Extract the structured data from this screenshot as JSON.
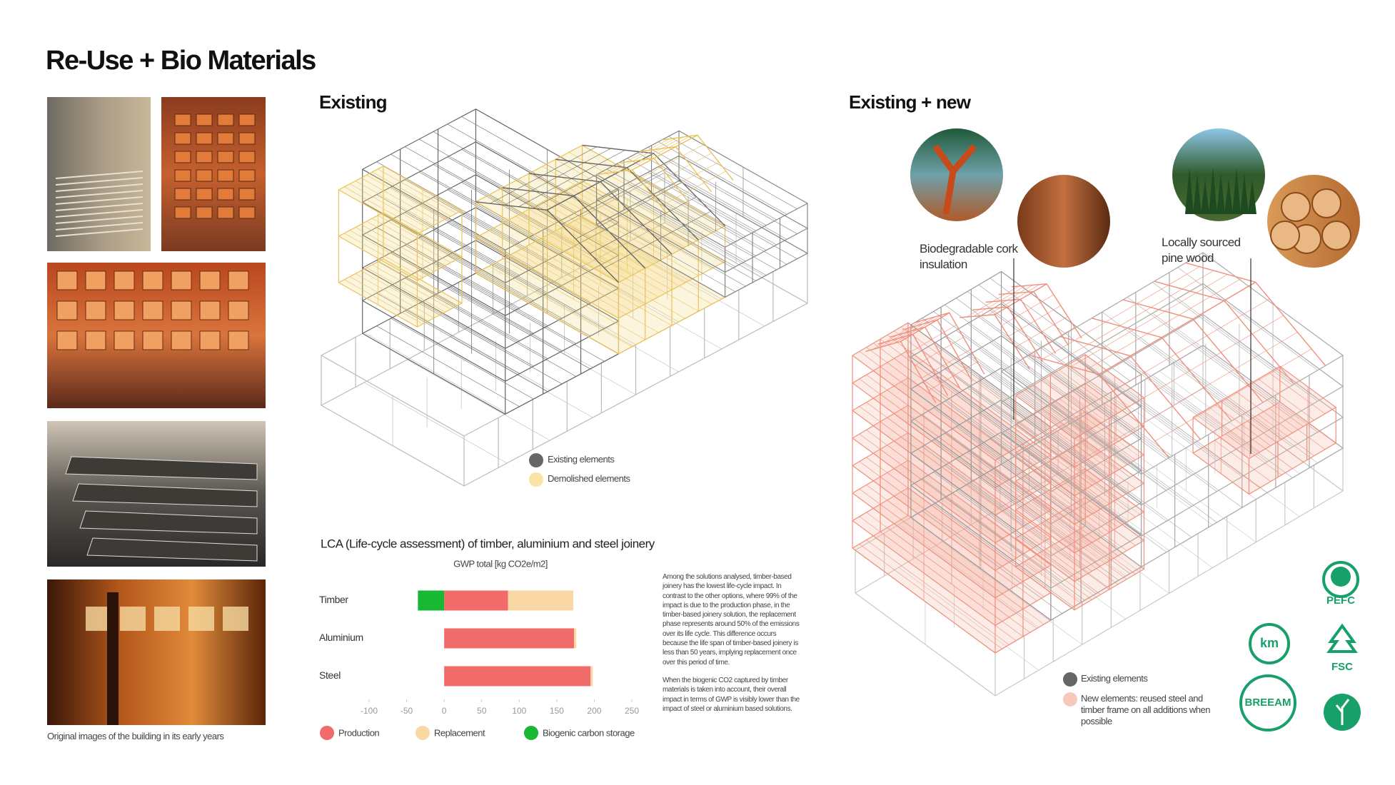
{
  "header": {
    "title": "Re-Use + Bio Materials"
  },
  "photos": {
    "caption": "Original images of the building in its early years"
  },
  "existing": {
    "title": "Existing",
    "legend": [
      "Existing elements",
      "Demolished elements"
    ]
  },
  "existing_new": {
    "title": "Existing + new",
    "labels": [
      "Biodegradable cork insulation",
      "Locally sourced pine wood"
    ],
    "legend": [
      "Existing elements",
      "New elements: reused steel and timber frame on all additions when possible"
    ]
  },
  "chart_data": {
    "type": "bar",
    "orientation": "horizontal",
    "stacked": true,
    "title": "LCA (Life-cycle assessment) of timber, aluminium and steel joinery",
    "xlabel": "GWP total [kg CO2e/m2]",
    "categories": [
      "Timber",
      "Aluminium",
      "Steel"
    ],
    "series": [
      {
        "name": "Production",
        "color": "#f26b6b",
        "values": [
          85,
          173,
          195
        ]
      },
      {
        "name": "Replacement",
        "color": "#f9d8a6",
        "values": [
          87,
          3,
          3
        ]
      },
      {
        "name": "Biogenic carbon storage",
        "color": "#19b833",
        "values": [
          -35,
          0,
          0
        ]
      }
    ],
    "xlim": [
      -100,
      250
    ],
    "xticks": [
      -100,
      -50,
      0,
      50,
      100,
      150,
      200,
      250
    ]
  },
  "chart_notes": [
    "Among the solutions analysed, timber-based joinery has the lowest life-cycle impact. In contrast to the other options, where 99% of the impact is due to the production phase, in the timber-based joinery solution, the replacement phase represents around 50% of the emissions over its life cycle. This difference occurs because the life span of timber-based joinery is less than 50 years, implying replacement once over this period of time.",
    "When the biogenic CO2 captured by timber materials is taken into account, their overall impact in terms of GWP is visibly lower than the impact of steel or aluminium based solutions."
  ],
  "certifications": [
    "PEFC",
    "km",
    "FSC",
    "BREEAM"
  ]
}
